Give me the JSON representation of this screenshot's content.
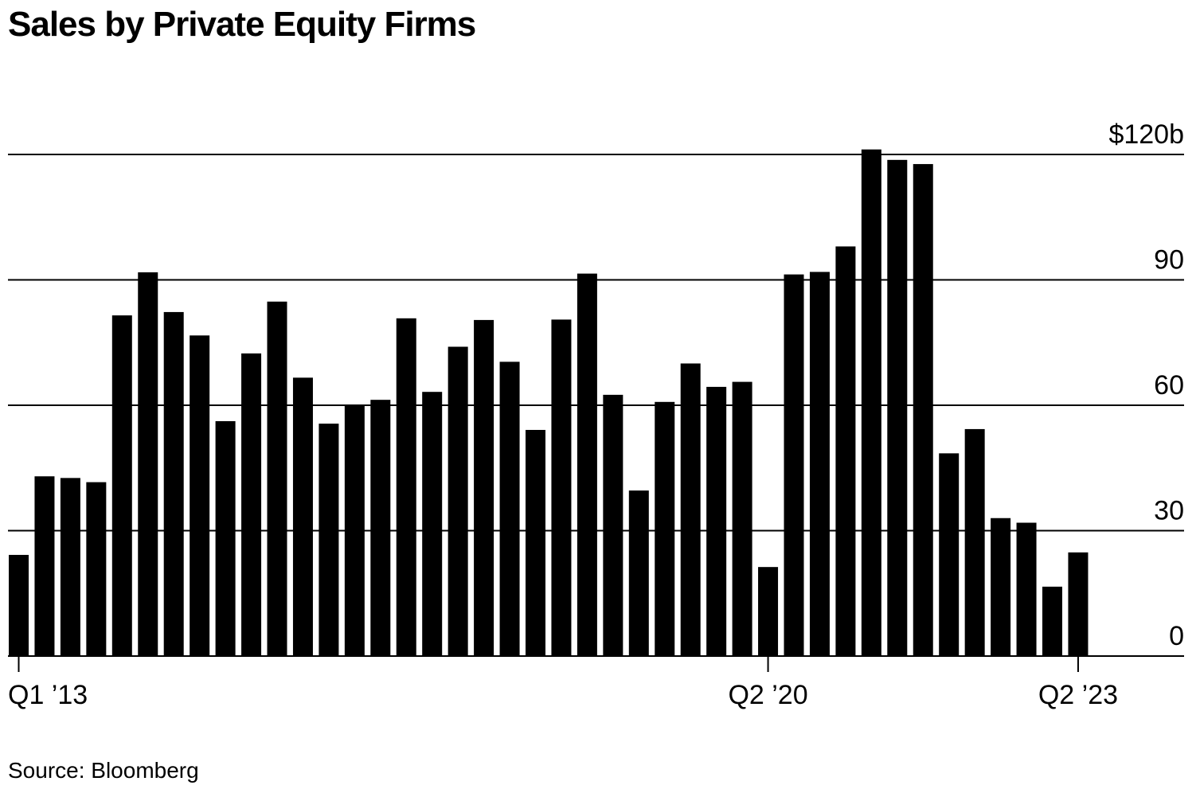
{
  "chart_data": {
    "type": "bar",
    "title": "Sales by Private Equity Firms",
    "source": "Source: Bloomberg",
    "xlabel": "",
    "ylabel": "",
    "ylim": [
      0,
      120
    ],
    "y_ticks": [
      {
        "value": 0,
        "label": "0"
      },
      {
        "value": 30,
        "label": "30"
      },
      {
        "value": 60,
        "label": "60"
      },
      {
        "value": 90,
        "label": "90"
      },
      {
        "value": 120,
        "label": "$120b"
      }
    ],
    "x_tick_labels": [
      {
        "index": 0,
        "label": "Q1 ’13"
      },
      {
        "index": 29,
        "label": "Q2 ’20"
      },
      {
        "index": 41,
        "label": "Q2 ’23"
      }
    ],
    "categories": [
      "Q1 2013",
      "Q2 2013",
      "Q3 2013",
      "Q4 2013",
      "Q1 2014",
      "Q2 2014",
      "Q3 2014",
      "Q4 2014",
      "Q1 2015",
      "Q2 2015",
      "Q3 2015",
      "Q4 2015",
      "Q1 2016",
      "Q2 2016",
      "Q3 2016",
      "Q4 2016",
      "Q1 2017",
      "Q2 2017",
      "Q3 2017",
      "Q4 2017",
      "Q1 2018",
      "Q2 2018",
      "Q3 2018",
      "Q4 2018",
      "Q1 2019",
      "Q2 2019",
      "Q3 2019",
      "Q4 2019",
      "Q1 2020",
      "Q2 2020",
      "Q3 2020",
      "Q4 2020",
      "Q1 2021",
      "Q2 2021",
      "Q3 2021",
      "Q4 2021",
      "Q1 2022",
      "Q2 2022",
      "Q3 2022",
      "Q4 2022",
      "Q1 2023",
      "Q2 2023"
    ],
    "values": [
      24.2,
      43.0,
      42.6,
      41.6,
      81.5,
      91.8,
      82.3,
      76.7,
      56.2,
      72.4,
      84.8,
      66.6,
      55.6,
      60.0,
      61.3,
      80.8,
      63.2,
      74.0,
      80.4,
      70.4,
      54.1,
      80.5,
      91.5,
      62.5,
      39.6,
      60.8,
      70.0,
      64.4,
      65.6,
      21.3,
      91.3,
      91.9,
      98.0,
      121.2,
      118.7,
      117.7,
      48.5,
      54.3,
      33.0,
      31.9,
      16.6,
      24.8
    ]
  }
}
